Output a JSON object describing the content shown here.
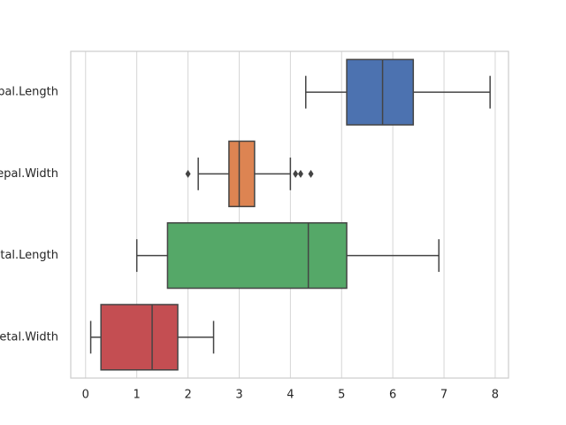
{
  "chart_data": {
    "type": "box",
    "orientation": "horizontal",
    "categories": [
      "Sepal.Length",
      "Sepal.Width",
      "Petal.Length",
      "Petal.Width"
    ],
    "boxes": [
      {
        "min": 4.3,
        "q1": 5.1,
        "median": 5.8,
        "q3": 6.4,
        "max": 7.9,
        "color": "#4c72b0"
      },
      {
        "min": 2.2,
        "q1": 2.8,
        "median": 3.0,
        "q3": 3.3,
        "max": 4.0,
        "outliers": [
          2.0,
          4.1,
          4.2,
          4.4
        ],
        "color": "#dd8452"
      },
      {
        "min": 1.0,
        "q1": 1.6,
        "median": 4.35,
        "q3": 5.1,
        "max": 6.9,
        "color": "#55a868"
      },
      {
        "min": 0.1,
        "q1": 0.3,
        "median": 1.3,
        "q3": 1.8,
        "max": 2.5,
        "color": "#c44e52"
      }
    ],
    "xlim": [
      -0.29,
      8.26
    ],
    "xticks": [
      0,
      1,
      2,
      3,
      4,
      5,
      6,
      7,
      8
    ],
    "grid": true
  }
}
